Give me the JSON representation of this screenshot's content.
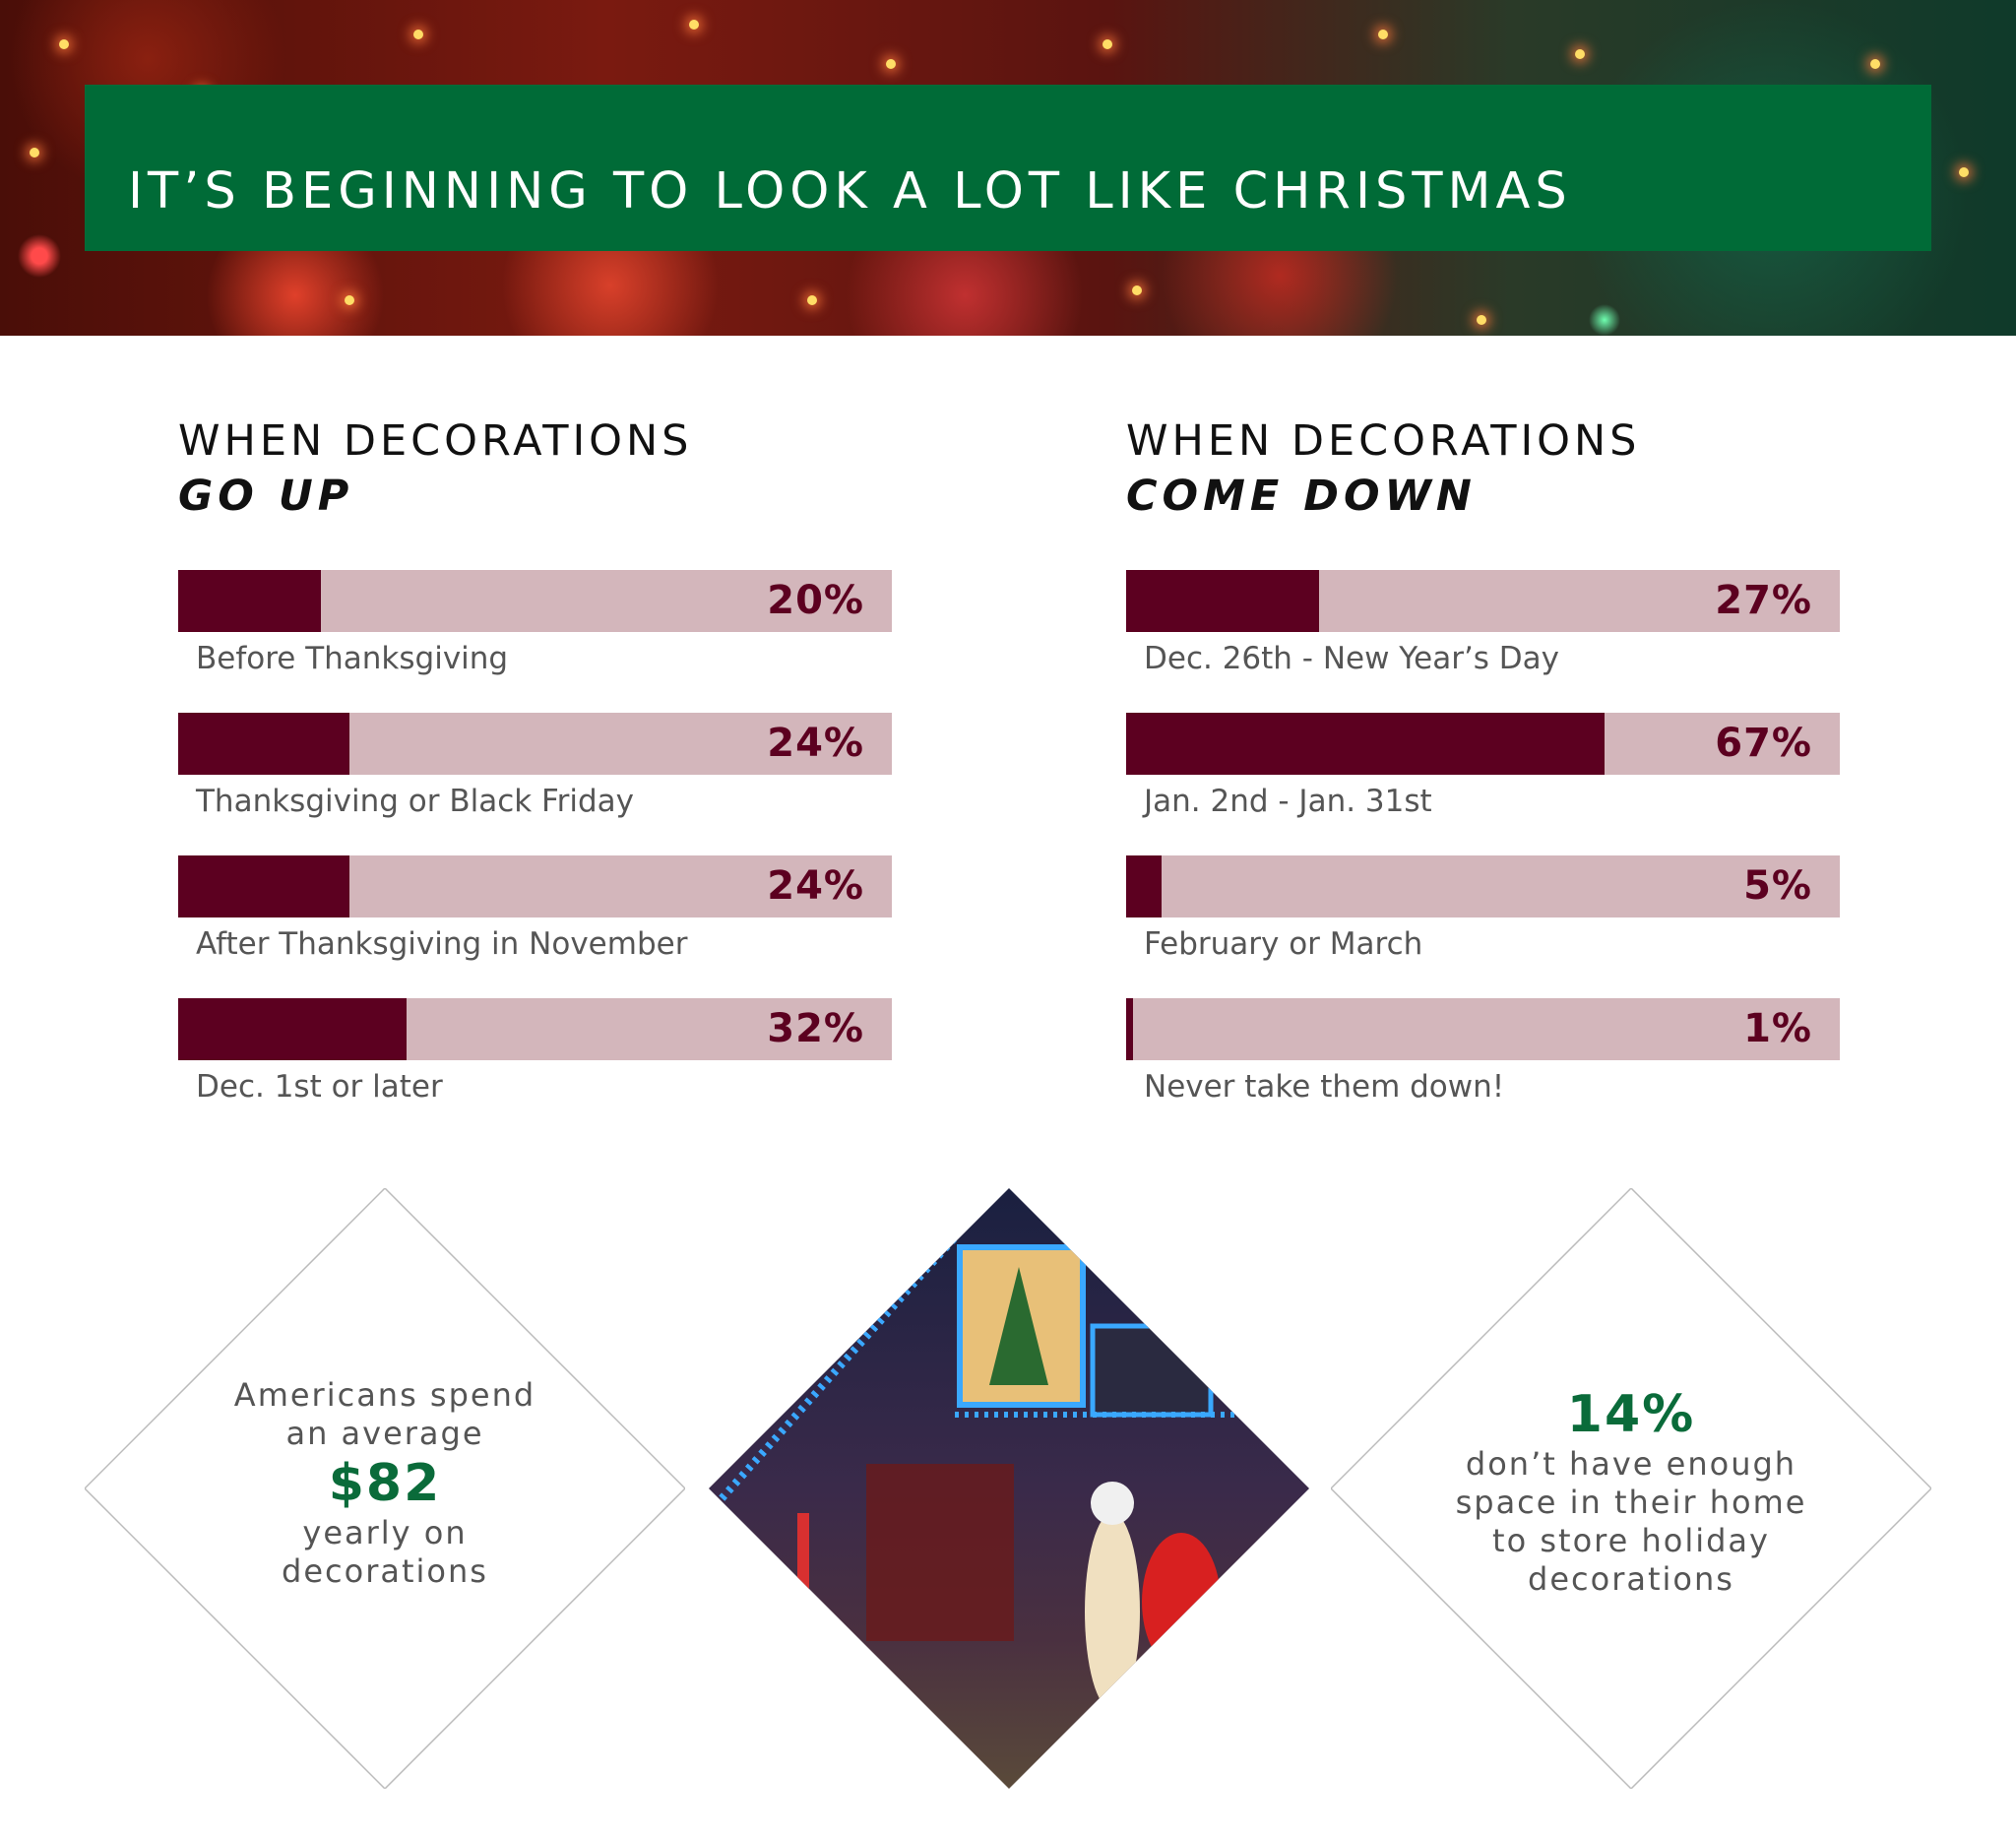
{
  "header": {
    "title": "IT’S BEGINNING TO LOOK A LOT LIKE CHRISTMAS"
  },
  "chart_data": [
    {
      "type": "bar",
      "title_line1": "WHEN DECORATIONS",
      "title_line2": "GO UP",
      "unit": "%",
      "xlim": [
        0,
        100
      ],
      "categories": [
        "Before Thanksgiving",
        "Thanksgiving or Black Friday",
        "After Thanksgiving in November",
        "Dec. 1st or later"
      ],
      "values": [
        20,
        24,
        24,
        32
      ],
      "labels": [
        "20%",
        "24%",
        "24%",
        "32%"
      ]
    },
    {
      "type": "bar",
      "title_line1": "WHEN DECORATIONS",
      "title_line2": "COME DOWN",
      "unit": "%",
      "xlim": [
        0,
        100
      ],
      "categories": [
        "Dec. 26th - New Year’s Day",
        "Jan. 2nd - Jan. 31st",
        "February or March",
        "Never take them down!"
      ],
      "values": [
        27,
        67,
        5,
        1
      ],
      "labels": [
        "27%",
        "67%",
        "5%",
        "1%"
      ]
    }
  ],
  "stats": {
    "left": {
      "line1": "Americans spend",
      "line2": "an average",
      "value": "$82",
      "line3": "yearly on",
      "line4": "decorations"
    },
    "right": {
      "value": "14%",
      "line1": "don’t have enough",
      "line2": "space in their home",
      "line3": "to store holiday",
      "line4": "decorations"
    }
  },
  "colors": {
    "green": "#006b37",
    "bar_fill": "#5c0020",
    "bar_track": "#d3b6bb"
  }
}
